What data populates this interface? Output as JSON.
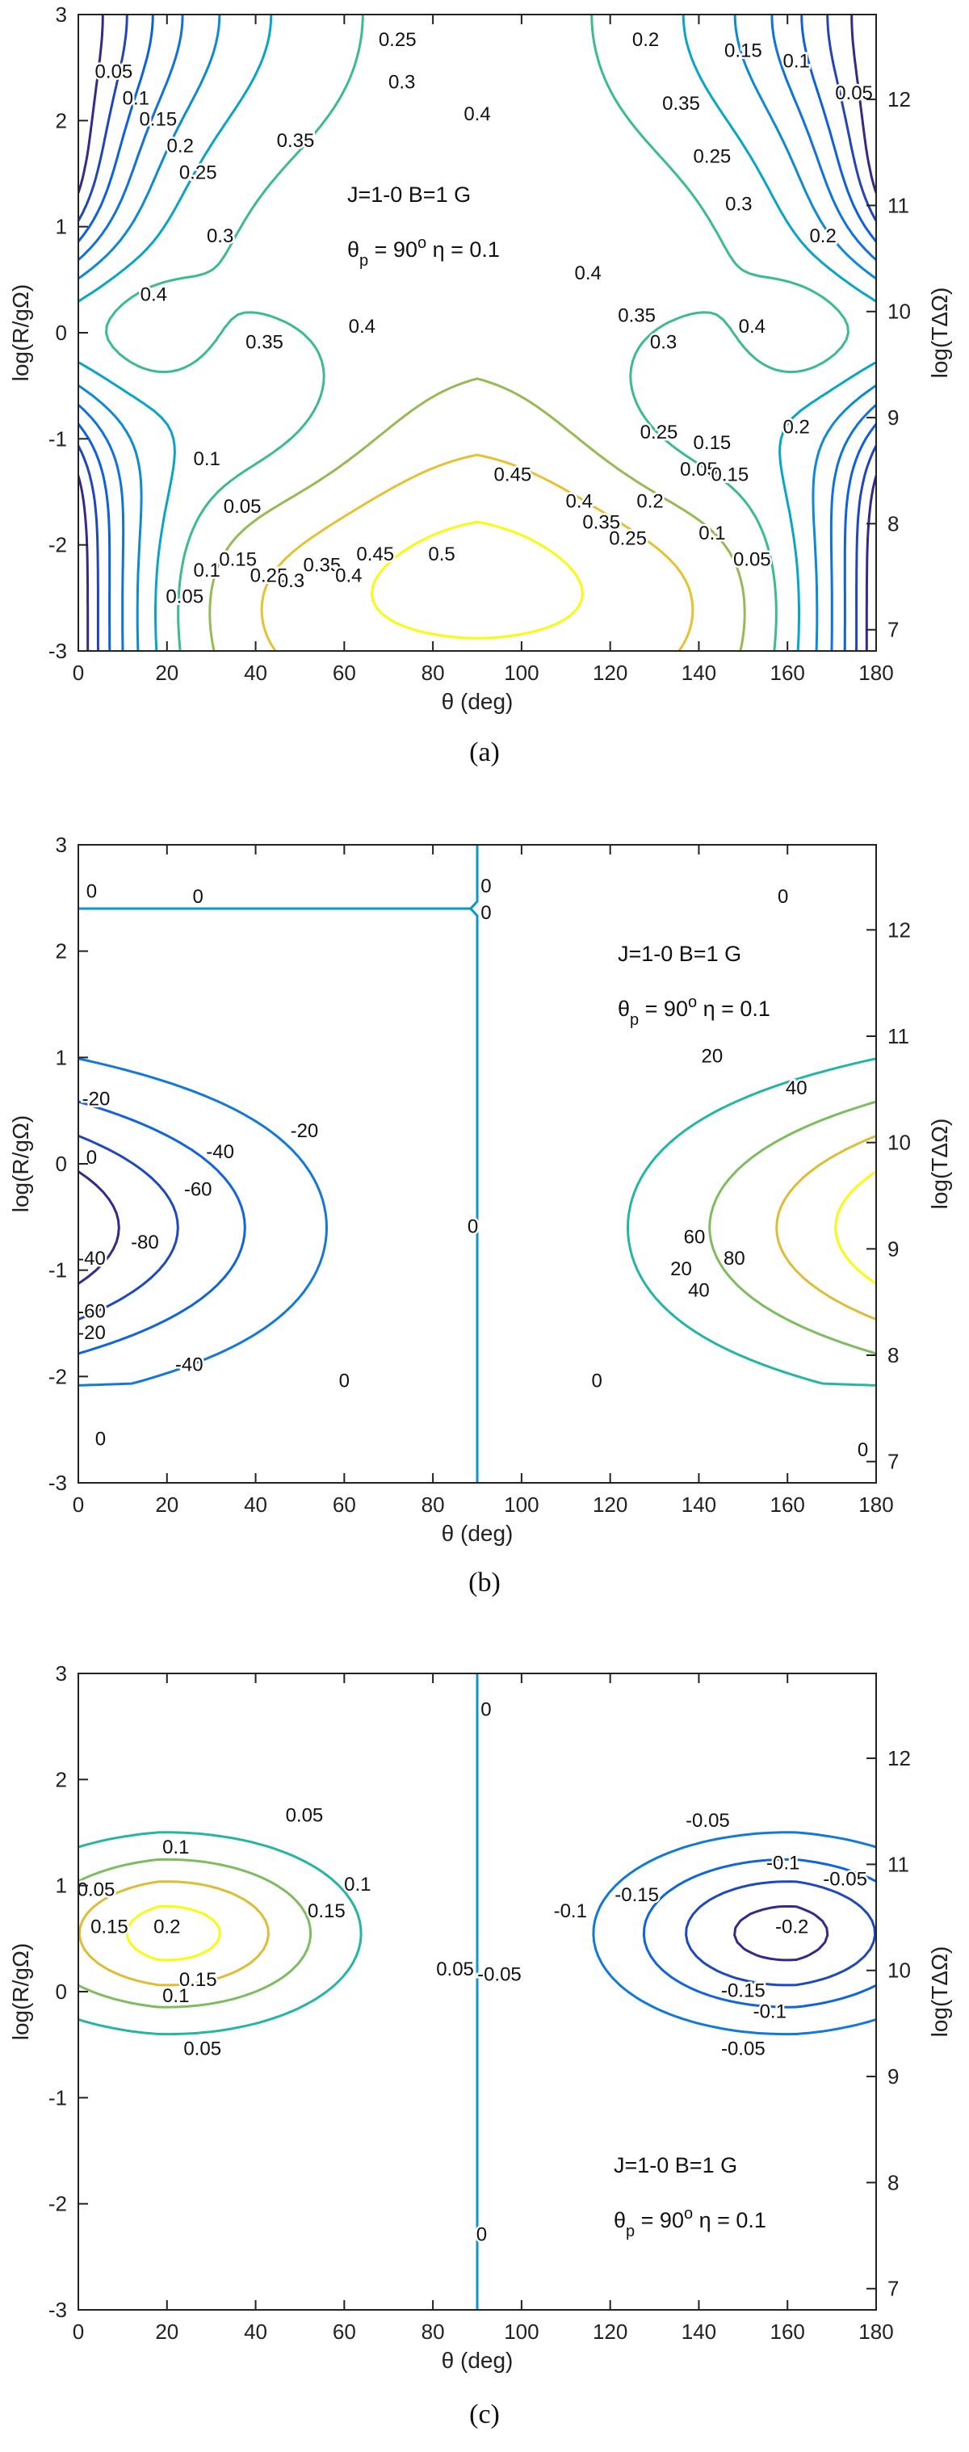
{
  "chart_data": [
    {
      "type": "contour",
      "panel_label": "(a)",
      "xlabel": "θ (deg)",
      "ylabel": "log(R/gΩ)",
      "y2label": "log(TΔΩ)",
      "xlim": [
        0,
        180
      ],
      "ylim": [
        -3,
        3
      ],
      "y2lim": [
        6.8,
        12.8
      ],
      "xticks": [
        0,
        20,
        40,
        60,
        80,
        100,
        120,
        140,
        160,
        180
      ],
      "yticks": [
        -3,
        -2,
        -1,
        0,
        1,
        2,
        3
      ],
      "y2ticks": [
        7,
        8,
        9,
        10,
        11,
        12
      ],
      "annotation": {
        "line1": "J=1-0  B=1 G",
        "theta": "θ",
        "sub": "p",
        "eq": " = 90",
        "sup": "o",
        "eta": "η = 0.1"
      },
      "levels": [
        0.05,
        0.1,
        0.15,
        0.2,
        0.25,
        0.3,
        0.35,
        0.4,
        0.45,
        0.5
      ],
      "contour_labels": [
        {
          "text": "0.25",
          "x": 72,
          "y": 2.75
        },
        {
          "text": "0.3",
          "x": 73,
          "y": 2.35
        },
        {
          "text": "0.2",
          "x": 128,
          "y": 2.75
        },
        {
          "text": "0.15",
          "x": 150,
          "y": 2.65
        },
        {
          "text": "0.1",
          "x": 162,
          "y": 2.55
        },
        {
          "text": "0.05",
          "x": 175,
          "y": 2.25
        },
        {
          "text": "0.05",
          "x": 8,
          "y": 2.45
        },
        {
          "text": "0.1",
          "x": 13,
          "y": 2.2
        },
        {
          "text": "0.15",
          "x": 18,
          "y": 2.0
        },
        {
          "text": "0.2",
          "x": 23,
          "y": 1.75
        },
        {
          "text": "0.25",
          "x": 27,
          "y": 1.5
        },
        {
          "text": "0.3",
          "x": 32,
          "y": 0.9
        },
        {
          "text": "0.35",
          "x": 49,
          "y": 1.8
        },
        {
          "text": "0.4",
          "x": 90,
          "y": 2.05
        },
        {
          "text": "0.35",
          "x": 136,
          "y": 2.15
        },
        {
          "text": "0.25",
          "x": 143,
          "y": 1.65
        },
        {
          "text": "0.3",
          "x": 149,
          "y": 1.2
        },
        {
          "text": "0.2",
          "x": 168,
          "y": 0.9
        },
        {
          "text": "0.4",
          "x": 17,
          "y": 0.35
        },
        {
          "text": "0.35",
          "x": 42,
          "y": -0.1
        },
        {
          "text": "0.4",
          "x": 64,
          "y": 0.05
        },
        {
          "text": "0.4",
          "x": 115,
          "y": 0.55
        },
        {
          "text": "0.35",
          "x": 126,
          "y": 0.15
        },
        {
          "text": "0.3",
          "x": 132,
          "y": -0.1
        },
        {
          "text": "0.4",
          "x": 152,
          "y": 0.05
        },
        {
          "text": "0.25",
          "x": 131,
          "y": -0.95
        },
        {
          "text": "0.2",
          "x": 129,
          "y": -1.6
        },
        {
          "text": "0.15",
          "x": 143,
          "y": -1.05
        },
        {
          "text": "0.05",
          "x": 140,
          "y": -1.3
        },
        {
          "text": "0.15",
          "x": 147,
          "y": -1.35
        },
        {
          "text": "0.2",
          "x": 162,
          "y": -0.9
        },
        {
          "text": "0.1",
          "x": 143,
          "y": -1.9
        },
        {
          "text": "0.05",
          "x": 152,
          "y": -2.15
        },
        {
          "text": "0.45",
          "x": 98,
          "y": -1.35
        },
        {
          "text": "0.4",
          "x": 113,
          "y": -1.6
        },
        {
          "text": "0.35",
          "x": 118,
          "y": -1.8
        },
        {
          "text": "0.25",
          "x": 124,
          "y": -1.95
        },
        {
          "text": "0.1",
          "x": 29,
          "y": -1.2
        },
        {
          "text": "0.05",
          "x": 37,
          "y": -1.65
        },
        {
          "text": "0.05",
          "x": 24,
          "y": -2.5
        },
        {
          "text": "0.1",
          "x": 29,
          "y": -2.25
        },
        {
          "text": "0.15",
          "x": 36,
          "y": -2.15
        },
        {
          "text": "0.25",
          "x": 43,
          "y": -2.3
        },
        {
          "text": "0.3",
          "x": 48,
          "y": -2.35
        },
        {
          "text": "0.35",
          "x": 55,
          "y": -2.2
        },
        {
          "text": "0.4",
          "x": 61,
          "y": -2.3
        },
        {
          "text": "0.45",
          "x": 67,
          "y": -2.1
        },
        {
          "text": "0.5",
          "x": 82,
          "y": -2.1
        }
      ]
    },
    {
      "type": "contour",
      "panel_label": "(b)",
      "xlabel": "θ (deg)",
      "ylabel": "log(R/gΩ)",
      "y2label": "log(TΔΩ)",
      "xlim": [
        0,
        180
      ],
      "ylim": [
        -3,
        3
      ],
      "y2lim": [
        6.8,
        12.8
      ],
      "xticks": [
        0,
        20,
        40,
        60,
        80,
        100,
        120,
        140,
        160,
        180
      ],
      "yticks": [
        -3,
        -2,
        -1,
        0,
        1,
        2,
        3
      ],
      "y2ticks": [
        7,
        8,
        9,
        10,
        11,
        12
      ],
      "annotation": {
        "line1": "J=1-0  B=1 G",
        "theta": "θ",
        "sub": "p",
        "eq": " = 90",
        "sup": "o",
        "eta": "η = 0.1"
      },
      "levels": [
        -80,
        -60,
        -40,
        -20,
        0,
        20,
        40,
        60,
        80
      ],
      "contour_labels": [
        {
          "text": "0",
          "x": 3,
          "y": 2.55
        },
        {
          "text": "0",
          "x": 27,
          "y": 2.5
        },
        {
          "text": "0",
          "x": 92,
          "y": 2.6
        },
        {
          "text": "0",
          "x": 92,
          "y": 2.35
        },
        {
          "text": "0",
          "x": 159,
          "y": 2.5
        },
        {
          "text": "-20",
          "x": 4,
          "y": 0.6
        },
        {
          "text": "-40",
          "x": 32,
          "y": 0.1
        },
        {
          "text": "-60",
          "x": 27,
          "y": -0.25
        },
        {
          "text": "-20",
          "x": 51,
          "y": 0.3
        },
        {
          "text": "-80",
          "x": 15,
          "y": -0.75
        },
        {
          "text": "0",
          "x": 3,
          "y": 0.05
        },
        {
          "text": "-40",
          "x": 3,
          "y": -0.9
        },
        {
          "text": "-60",
          "x": 3,
          "y": -1.4
        },
        {
          "text": "-20",
          "x": 3,
          "y": -1.6
        },
        {
          "text": "-40",
          "x": 25,
          "y": -1.9
        },
        {
          "text": "0",
          "x": 89,
          "y": -0.6
        },
        {
          "text": "20",
          "x": 143,
          "y": 1.0
        },
        {
          "text": "40",
          "x": 162,
          "y": 0.7
        },
        {
          "text": "80",
          "x": 148,
          "y": -0.9
        },
        {
          "text": "60",
          "x": 139,
          "y": -0.7
        },
        {
          "text": "40",
          "x": 140,
          "y": -1.2
        },
        {
          "text": "20",
          "x": 136,
          "y": -1.0
        },
        {
          "text": "0",
          "x": 60,
          "y": -2.05
        },
        {
          "text": "0",
          "x": 117,
          "y": -2.05
        },
        {
          "text": "0",
          "x": 5,
          "y": -2.6
        },
        {
          "text": "0",
          "x": 177,
          "y": -2.7
        }
      ]
    },
    {
      "type": "contour",
      "panel_label": "(c)",
      "xlabel": "θ (deg)",
      "ylabel": "log(R/gΩ)",
      "y2label": "log(TΔΩ)",
      "xlim": [
        0,
        180
      ],
      "ylim": [
        -3,
        3
      ],
      "y2lim": [
        6.8,
        12.8
      ],
      "xticks": [
        0,
        20,
        40,
        60,
        80,
        100,
        120,
        140,
        160,
        180
      ],
      "yticks": [
        -3,
        -2,
        -1,
        0,
        1,
        2,
        3
      ],
      "y2ticks": [
        7,
        8,
        9,
        10,
        11,
        12
      ],
      "annotation": {
        "line1": "J=1-0  B=1 G",
        "theta": "θ",
        "sub": "p",
        "eq": " = 90",
        "sup": "o",
        "eta": "η = 0.1"
      },
      "levels": [
        -0.2,
        -0.15,
        -0.1,
        -0.05,
        0,
        0.05,
        0.1,
        0.15,
        0.2
      ],
      "contour_labels": [
        {
          "text": "0",
          "x": 92,
          "y": 2.65
        },
        {
          "text": "0.05",
          "x": 51,
          "y": 1.65
        },
        {
          "text": "0.1",
          "x": 22,
          "y": 1.35
        },
        {
          "text": "0.05",
          "x": 4,
          "y": 0.95
        },
        {
          "text": "0.15",
          "x": 7,
          "y": 0.6
        },
        {
          "text": "0.2",
          "x": 20,
          "y": 0.6
        },
        {
          "text": "0.15",
          "x": 56,
          "y": 0.75
        },
        {
          "text": "0.1",
          "x": 63,
          "y": 1.0
        },
        {
          "text": "0.15",
          "x": 27,
          "y": 0.1
        },
        {
          "text": "0.1",
          "x": 22,
          "y": -0.05
        },
        {
          "text": "0.05",
          "x": 28,
          "y": -0.55
        },
        {
          "text": "0.05",
          "x": 85,
          "y": 0.2
        },
        {
          "text": "-0.05",
          "x": 95,
          "y": 0.15
        },
        {
          "text": "-0.05",
          "x": 142,
          "y": 1.6
        },
        {
          "text": "-0.1",
          "x": 159,
          "y": 1.2
        },
        {
          "text": "-0.05",
          "x": 173,
          "y": 1.05
        },
        {
          "text": "-0.1",
          "x": 111,
          "y": 0.75
        },
        {
          "text": "-0.15",
          "x": 126,
          "y": 0.9
        },
        {
          "text": "-0.2",
          "x": 161,
          "y": 0.6
        },
        {
          "text": "-0.15",
          "x": 150,
          "y": 0.0
        },
        {
          "text": "-0.1",
          "x": 156,
          "y": -0.2
        },
        {
          "text": "-0.05",
          "x": 150,
          "y": -0.55
        },
        {
          "text": "0",
          "x": 91,
          "y": -2.3
        }
      ]
    }
  ]
}
